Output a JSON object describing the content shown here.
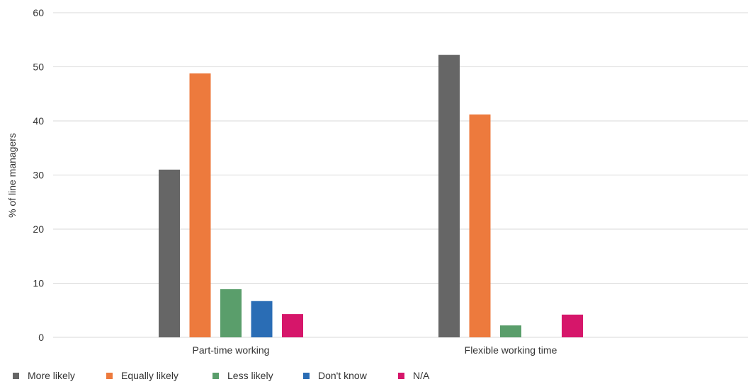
{
  "chart_data": {
    "type": "bar",
    "title": "",
    "xlabel": "",
    "ylabel": "% of line managers",
    "ylim": [
      0,
      60
    ],
    "yticks": [
      0,
      10,
      20,
      30,
      40,
      50,
      60
    ],
    "grid": true,
    "legend_position": "bottom-left",
    "categories": [
      "Part-time working",
      "Flexible working time"
    ],
    "series": [
      {
        "name": "More likely",
        "color": "#666666",
        "values": [
          31,
          52.2
        ]
      },
      {
        "name": "Equally likely",
        "color": "#ed7a3d",
        "values": [
          48.8,
          41.2
        ]
      },
      {
        "name": "Less likely",
        "color": "#5a9e6b",
        "values": [
          8.9,
          2.2
        ]
      },
      {
        "name": "Don't know",
        "color": "#2a6db5",
        "values": [
          6.7,
          0
        ]
      },
      {
        "name": "N/A",
        "color": "#d6166a",
        "values": [
          4.3,
          4.2
        ]
      }
    ]
  }
}
